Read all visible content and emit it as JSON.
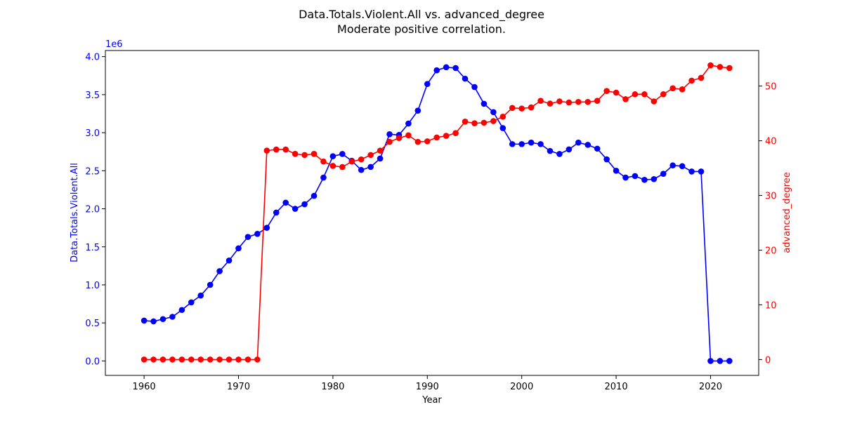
{
  "chart_data": {
    "type": "line",
    "title": "Data.Totals.Violent.All vs. advanced_degree",
    "subtitle": "Moderate positive correlation.",
    "xlabel": "Year",
    "ylabel_left": "Data.Totals.Violent.All",
    "ylabel_right": "advanced_degree",
    "left_offset_label": "1e6",
    "xlim": [
      1955.9,
      2025.1
    ],
    "ylim_left": [
      -0.19,
      4.08
    ],
    "ylim_right": [
      -2.9,
      56.5
    ],
    "x_ticks": [
      1960,
      1970,
      1980,
      1990,
      2000,
      2010,
      2020
    ],
    "y_left_ticks": [
      0.0,
      0.5,
      1.0,
      1.5,
      2.0,
      2.5,
      3.0,
      3.5,
      4.0
    ],
    "y_left_tick_labels": [
      "0.0",
      "0.5",
      "1.0",
      "1.5",
      "2.0",
      "2.5",
      "3.0",
      "3.5",
      "4.0"
    ],
    "y_right_ticks": [
      0,
      10,
      20,
      30,
      40,
      50
    ],
    "y_right_tick_labels": [
      "0",
      "10",
      "20",
      "30",
      "40",
      "50"
    ],
    "grid": false,
    "x": [
      1960,
      1961,
      1962,
      1963,
      1964,
      1965,
      1966,
      1967,
      1968,
      1969,
      1970,
      1971,
      1972,
      1973,
      1974,
      1975,
      1976,
      1977,
      1978,
      1979,
      1980,
      1981,
      1982,
      1983,
      1984,
      1985,
      1986,
      1987,
      1988,
      1989,
      1990,
      1991,
      1992,
      1993,
      1994,
      1995,
      1996,
      1997,
      1998,
      1999,
      2000,
      2001,
      2002,
      2003,
      2004,
      2005,
      2006,
      2007,
      2008,
      2009,
      2010,
      2011,
      2012,
      2013,
      2014,
      2015,
      2016,
      2017,
      2018,
      2019,
      2020,
      2021,
      2022
    ],
    "series": [
      {
        "axis": "left",
        "color": "#0000ff",
        "values": [
          0.53,
          0.52,
          0.55,
          0.58,
          0.67,
          0.77,
          0.86,
          1.0,
          1.18,
          1.32,
          1.48,
          1.63,
          1.67,
          1.75,
          1.95,
          2.08,
          2.0,
          2.06,
          2.17,
          2.41,
          2.69,
          2.72,
          2.63,
          2.51,
          2.55,
          2.66,
          2.98,
          2.97,
          3.12,
          3.29,
          3.64,
          3.82,
          3.86,
          3.85,
          3.71,
          3.6,
          3.38,
          3.27,
          3.06,
          2.85,
          2.85,
          2.87,
          2.85,
          2.76,
          2.72,
          2.78,
          2.87,
          2.84,
          2.79,
          2.65,
          2.5,
          2.41,
          2.43,
          2.38,
          2.39,
          2.46,
          2.57,
          2.56,
          2.49,
          2.49,
          0.0,
          0.0,
          0.0
        ]
      },
      {
        "axis": "right",
        "color": "#ff0000",
        "values": [
          0,
          0,
          0,
          0,
          0,
          0,
          0,
          0,
          0,
          0,
          0,
          0,
          0,
          38.2,
          38.4,
          38.4,
          37.6,
          37.4,
          37.6,
          36.2,
          35.4,
          35.2,
          36.2,
          36.6,
          37.4,
          38.2,
          39.8,
          40.5,
          41.0,
          39.8,
          39.9,
          40.6,
          40.9,
          41.4,
          43.5,
          43.2,
          43.3,
          43.6,
          44.4,
          46.0,
          45.9,
          46.1,
          47.3,
          46.8,
          47.2,
          47.0,
          47.1,
          47.1,
          47.3,
          49.1,
          48.8,
          47.6,
          48.5,
          48.5,
          47.2,
          48.5,
          49.6,
          49.4,
          51.0,
          51.5,
          53.8,
          53.5,
          53.3
        ]
      }
    ]
  }
}
